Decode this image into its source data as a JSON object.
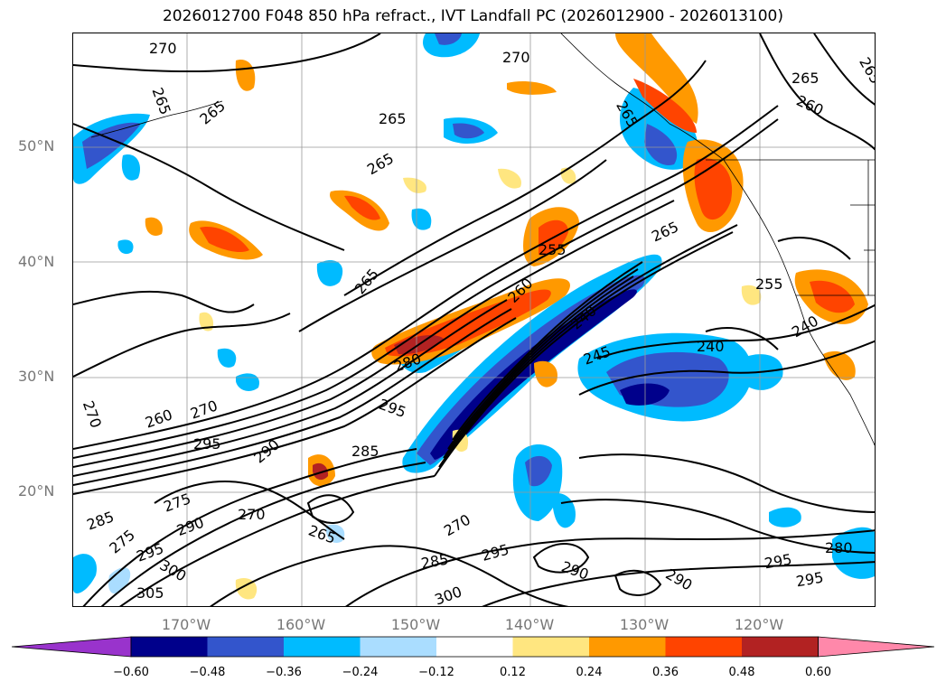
{
  "title": "2026012700 F048 850 hPa refract., IVT Landfall PC (2026012900 - 2026013100)",
  "lat_labels": [
    "50°N",
    "40°N",
    "30°N",
    "20°N"
  ],
  "lon_labels": [
    "170°W",
    "160°W",
    "150°W",
    "140°W",
    "130°W",
    "120°W"
  ],
  "colorbar": {
    "ticks": [
      "−0.60",
      "−0.48",
      "−0.36",
      "−0.24",
      "−0.12",
      "0.12",
      "0.24",
      "0.36",
      "0.48",
      "0.60"
    ],
    "colors": [
      "#9933cc",
      "#00008b",
      "#3355cc",
      "#00bbff",
      "#aaddff",
      "#ffffff",
      "#ffe680",
      "#ff9900",
      "#ff4400",
      "#b22222",
      "#ff88aa"
    ]
  },
  "contour_labels": [
    "270",
    "265",
    "265",
    "265",
    "265",
    "270",
    "265",
    "260",
    "265",
    "265",
    "255",
    "260",
    "265",
    "255",
    "240",
    "240",
    "240",
    "245",
    "280",
    "270",
    "260",
    "270",
    "295",
    "295",
    "290",
    "285",
    "275",
    "270",
    "265",
    "285",
    "275",
    "295",
    "290",
    "300",
    "305",
    "270",
    "285",
    "295",
    "300",
    "290",
    "290",
    "280",
    "295",
    "295",
    "265"
  ]
}
